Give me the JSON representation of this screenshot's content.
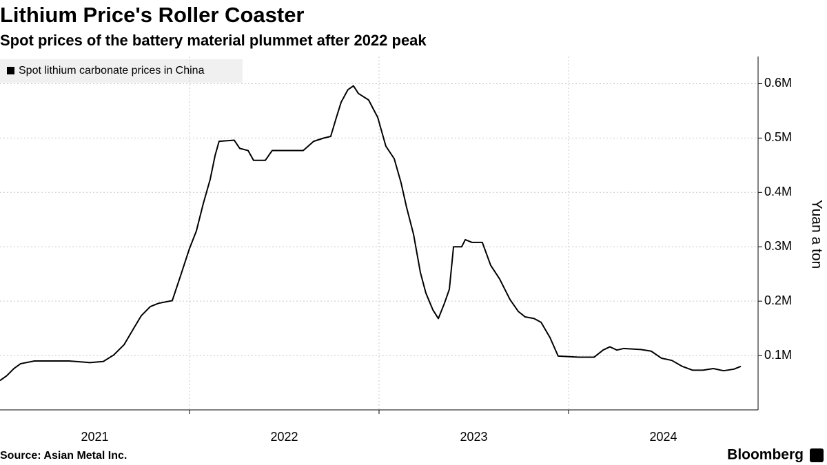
{
  "chart_data": {
    "type": "line",
    "title": "Lithium Price's Roller Coaster",
    "subtitle": "Spot prices of the battery material plummet after 2022 peak",
    "y_axis_label": "Yuan a ton",
    "source": "Source: Asian Metal Inc.",
    "brand": "Bloomberg",
    "legend_position": "top-left",
    "grid": true,
    "xlim": [
      2021,
      2025
    ],
    "xticks": [
      2021,
      2022,
      2023,
      2024
    ],
    "ylim": [
      0,
      650000
    ],
    "yticks": [
      {
        "value": 100000,
        "label": "0.1M"
      },
      {
        "value": 200000,
        "label": "0.2M"
      },
      {
        "value": 300000,
        "label": "0.3M"
      },
      {
        "value": 400000,
        "label": "0.4M"
      },
      {
        "value": 500000,
        "label": "0.5M"
      },
      {
        "value": 600000,
        "label": "0.6M"
      }
    ],
    "x": [
      2021.0,
      2021.036,
      2021.073,
      2021.109,
      2021.182,
      2021.364,
      2021.473,
      2021.545,
      2021.6,
      2021.655,
      2021.709,
      2021.745,
      2021.793,
      2021.836,
      2021.909,
      2021.953,
      2022.0,
      2022.036,
      2022.073,
      2022.109,
      2022.135,
      2022.156,
      2022.236,
      2022.265,
      2022.309,
      2022.338,
      2022.4,
      2022.436,
      2022.6,
      2022.655,
      2022.709,
      2022.745,
      2022.775,
      2022.8,
      2022.836,
      2022.865,
      2022.891,
      2022.945,
      2022.993,
      2023.036,
      2023.08,
      2023.116,
      2023.145,
      2023.182,
      2023.218,
      2023.247,
      2023.284,
      2023.313,
      2023.345,
      2023.371,
      2023.393,
      2023.436,
      2023.455,
      2023.491,
      2023.545,
      2023.589,
      2023.636,
      2023.691,
      2023.735,
      2023.771,
      2023.818,
      2023.855,
      2023.902,
      2023.945,
      2024.055,
      2024.135,
      2024.182,
      2024.218,
      2024.255,
      2024.291,
      2024.382,
      2024.436,
      2024.491,
      2024.545,
      2024.6,
      2024.655,
      2024.709,
      2024.764,
      2024.818,
      2024.873,
      2024.909
    ],
    "series": [
      {
        "name": "Spot lithium carbonate prices in China",
        "color": "#000000",
        "values": [
          54000,
          63000,
          76000,
          85000,
          90000,
          90000,
          87000,
          89000,
          101000,
          120000,
          152000,
          173000,
          190000,
          196000,
          201000,
          247000,
          297000,
          329000,
          380000,
          424000,
          468000,
          494000,
          496000,
          481000,
          477000,
          459000,
          459000,
          477000,
          477000,
          494000,
          500000,
          503000,
          538000,
          566000,
          589000,
          596000,
          582000,
          570000,
          538000,
          485000,
          462000,
          418000,
          373000,
          323000,
          253000,
          215000,
          184000,
          168000,
          196000,
          222000,
          300000,
          300000,
          313000,
          308000,
          308000,
          266000,
          241000,
          203000,
          181000,
          171000,
          168000,
          161000,
          133000,
          99000,
          97000,
          97000,
          110000,
          116000,
          110000,
          113000,
          111000,
          108000,
          95000,
          91000,
          80000,
          73000,
          73000,
          76000,
          72000,
          75000,
          80000
        ]
      }
    ]
  }
}
